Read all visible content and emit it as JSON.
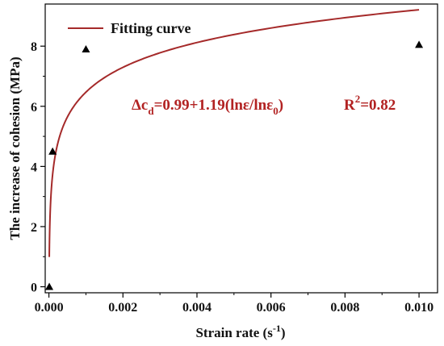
{
  "chart_data": {
    "type": "scatter",
    "xlabel_main": "Strain rate (s",
    "xlabel_sup": "-1",
    "xlabel_end": ")",
    "ylabel": "The increase of cohesion (MPa)",
    "xlim": [
      -0.0001,
      0.0105
    ],
    "ylim": [
      -0.2,
      9.4
    ],
    "x_ticks": [
      0.0,
      0.002,
      0.004,
      0.006,
      0.008,
      0.01
    ],
    "x_tick_labels": [
      "0.000",
      "0.002",
      "0.004",
      "0.006",
      "0.008",
      "0.010"
    ],
    "y_ticks": [
      0,
      2,
      4,
      6,
      8
    ],
    "y_tick_labels": [
      "0",
      "2",
      "4",
      "6",
      "8"
    ],
    "grid": false,
    "legend_position": "top-left",
    "series": [
      {
        "name": "",
        "kind": "scatter",
        "marker": "triangle",
        "color": "#000000",
        "x": [
          1e-05,
          0.0001,
          0.001,
          0.01
        ],
        "y": [
          0.0,
          4.5,
          7.9,
          8.05
        ]
      },
      {
        "name": "Fitting curve",
        "kind": "line",
        "color": "#a52a2a",
        "equation": {
          "a": 0.99,
          "b": 1.19,
          "x0": 1e-05
        },
        "x_range": [
          1e-05,
          0.01
        ]
      }
    ],
    "annotations": {
      "equation": {
        "delta_c": "Δc",
        "sub_d": "d",
        "formula": "=0.99+1.19(lnε/lnε",
        "sub_0": "0",
        "close": ")",
        "r2_r": "R",
        "r2_sup": "2",
        "r2_value": "=0.82",
        "color": "#b22222"
      }
    }
  }
}
